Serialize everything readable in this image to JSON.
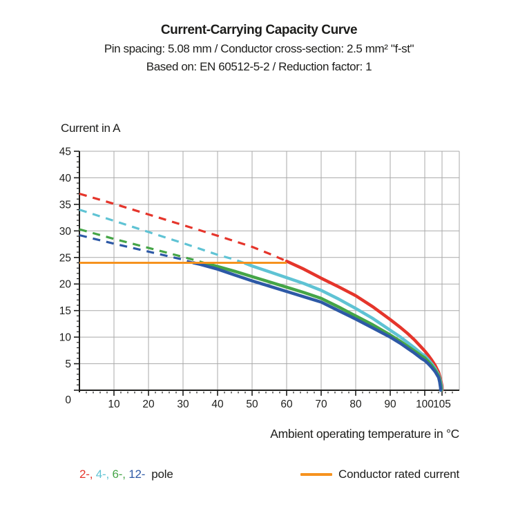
{
  "header": {
    "title": "Current-Carrying Capacity Curve",
    "subtitle1": "Pin spacing: 5.08 mm / Conductor cross-section: 2.5 mm² \"f-st\"",
    "subtitle2": "Based on: EN 60512-5-2 / Reduction factor: 1"
  },
  "chart_data": {
    "type": "line",
    "title": "Current-Carrying Capacity Curve",
    "ylabel": "Current in A",
    "xlabel": "Ambient operating temperature in °C",
    "xlim": [
      0,
      110
    ],
    "ylim": [
      0,
      45
    ],
    "x_ticks": [
      10,
      20,
      30,
      40,
      50,
      60,
      70,
      80,
      90,
      100,
      105
    ],
    "y_ticks": [
      0,
      5,
      10,
      15,
      20,
      25,
      30,
      35,
      40,
      45
    ],
    "grid": true,
    "grid_color": "#a9a9a9",
    "axis_color": "#1d1d1b",
    "legend_position": "bottom",
    "series": [
      {
        "name": "2-pole",
        "pole_count": 2,
        "color": "#e5352b",
        "value_at_0C": 37,
        "crosses_rated_at_C": 60,
        "dashed_points": [
          [
            0,
            37
          ],
          [
            10,
            35.1
          ],
          [
            20,
            33.1
          ],
          [
            30,
            31.1
          ],
          [
            40,
            29.1
          ],
          [
            50,
            27.0
          ],
          [
            55,
            25.7
          ],
          [
            60,
            24.3
          ]
        ],
        "solid_points": [
          [
            60,
            24.3
          ],
          [
            63,
            23.4
          ],
          [
            65,
            22.8
          ],
          [
            70,
            21.1
          ],
          [
            75,
            19.5
          ],
          [
            80,
            17.8
          ],
          [
            85,
            15.7
          ],
          [
            90,
            13.3
          ],
          [
            93,
            11.8
          ],
          [
            95,
            10.7
          ],
          [
            97,
            9.5
          ],
          [
            99,
            8.1
          ],
          [
            100,
            7.4
          ],
          [
            101,
            6.6
          ],
          [
            102,
            5.7
          ],
          [
            103,
            4.7
          ],
          [
            104,
            3.4
          ],
          [
            104.6,
            2.0
          ],
          [
            105.0,
            0.8
          ],
          [
            105.05,
            0
          ]
        ]
      },
      {
        "name": "4-pole",
        "pole_count": 4,
        "color": "#5fc3d4",
        "value_at_0C": 34,
        "crosses_rated_at_C": 48,
        "dashed_points": [
          [
            0,
            34
          ],
          [
            10,
            31.9
          ],
          [
            20,
            29.8
          ],
          [
            30,
            27.7
          ],
          [
            40,
            25.5
          ],
          [
            45,
            24.6
          ],
          [
            48,
            23.9
          ]
        ],
        "solid_points": [
          [
            48,
            23.9
          ],
          [
            50,
            23.4
          ],
          [
            55,
            22.3
          ],
          [
            60,
            21.2
          ],
          [
            65,
            20.1
          ],
          [
            70,
            18.8
          ],
          [
            75,
            17.2
          ],
          [
            80,
            15.4
          ],
          [
            85,
            13.5
          ],
          [
            90,
            11.3
          ],
          [
            93,
            10.0
          ],
          [
            95,
            9.0
          ],
          [
            97,
            8.0
          ],
          [
            99,
            6.9
          ],
          [
            100,
            6.5
          ],
          [
            101,
            5.8
          ],
          [
            102,
            5.0
          ],
          [
            103,
            4.1
          ],
          [
            104,
            2.9
          ],
          [
            104.5,
            1.9
          ],
          [
            104.85,
            0.7
          ],
          [
            104.9,
            0
          ]
        ]
      },
      {
        "name": "6-pole",
        "pole_count": 6,
        "color": "#45a547",
        "value_at_0C": 30.3,
        "crosses_rated_at_C": 36.5,
        "dashed_points": [
          [
            0,
            30.3
          ],
          [
            10,
            28.5
          ],
          [
            20,
            26.8
          ],
          [
            30,
            25.1
          ],
          [
            35,
            24.2
          ],
          [
            36.5,
            23.9
          ]
        ],
        "solid_points": [
          [
            36.5,
            23.9
          ],
          [
            40,
            23.3
          ],
          [
            45,
            22.4
          ],
          [
            50,
            21.4
          ],
          [
            55,
            20.4
          ],
          [
            60,
            19.4
          ],
          [
            65,
            18.4
          ],
          [
            70,
            17.3
          ],
          [
            75,
            15.7
          ],
          [
            80,
            14.0
          ],
          [
            85,
            12.3
          ],
          [
            90,
            10.4
          ],
          [
            93,
            9.2
          ],
          [
            95,
            8.3
          ],
          [
            97,
            7.4
          ],
          [
            99,
            6.5
          ],
          [
            100,
            6.1
          ],
          [
            101,
            5.4
          ],
          [
            102,
            4.7
          ],
          [
            103,
            3.8
          ],
          [
            104,
            2.7
          ],
          [
            104.4,
            1.8
          ],
          [
            104.7,
            0.6
          ],
          [
            104.75,
            0
          ]
        ]
      },
      {
        "name": "12-pole",
        "pole_count": 12,
        "color": "#2d59a6",
        "value_at_0C": 29.2,
        "crosses_rated_at_C": 33,
        "dashed_points": [
          [
            0,
            29.2
          ],
          [
            10,
            27.6
          ],
          [
            20,
            26.1
          ],
          [
            30,
            24.6
          ],
          [
            33,
            24.0
          ]
        ],
        "solid_points": [
          [
            33,
            24.0
          ],
          [
            35,
            23.7
          ],
          [
            40,
            22.8
          ],
          [
            45,
            21.7
          ],
          [
            50,
            20.6
          ],
          [
            55,
            19.6
          ],
          [
            60,
            18.6
          ],
          [
            65,
            17.6
          ],
          [
            70,
            16.6
          ],
          [
            75,
            15.0
          ],
          [
            80,
            13.4
          ],
          [
            85,
            11.7
          ],
          [
            90,
            10.0
          ],
          [
            93,
            8.8
          ],
          [
            95,
            7.9
          ],
          [
            97,
            7.0
          ],
          [
            99,
            6.0
          ],
          [
            100,
            5.6
          ],
          [
            101,
            5.0
          ],
          [
            102,
            4.3
          ],
          [
            103,
            3.5
          ],
          [
            104,
            2.4
          ],
          [
            104.3,
            1.6
          ],
          [
            104.55,
            0.5
          ],
          [
            104.6,
            0
          ]
        ]
      }
    ],
    "rated_current": {
      "label": "Conductor rated current",
      "value_A": 24,
      "color": "#f6921e",
      "points": [
        [
          0,
          24
        ],
        [
          60,
          24
        ]
      ]
    }
  },
  "legend": {
    "pole_items": [
      {
        "label": "2-",
        "pole_count": 2,
        "color": "#e5352b"
      },
      {
        "label": "4-",
        "pole_count": 4,
        "color": "#5fc3d4"
      },
      {
        "label": "6-",
        "pole_count": 6,
        "color": "#45a547"
      },
      {
        "label": "12-",
        "pole_count": 12,
        "color": "#2d59a6"
      }
    ],
    "separator": ", ",
    "pole_suffix": "pole",
    "rated_label": "Conductor rated current",
    "rated_color": "#f6921e"
  }
}
